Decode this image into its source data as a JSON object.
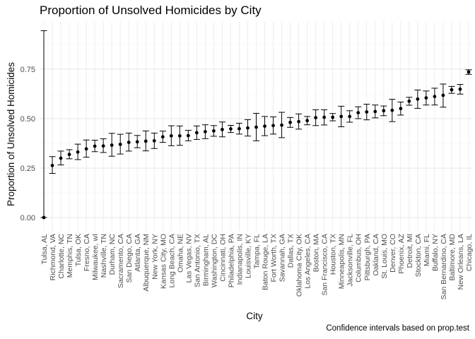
{
  "chart_data": {
    "type": "scatter",
    "title": "Proportion of Unsolved Homicides by City",
    "xlabel": "City",
    "ylabel": "Proportion of Unsolved Homicides",
    "caption": "Confidence intervals based on prop.test",
    "ylim": [
      0,
      0.95
    ],
    "y_ticks": [
      0.0,
      0.25,
      0.5,
      0.75
    ],
    "y_tick_labels": [
      "0.00",
      "0.25",
      "0.50",
      "0.75"
    ],
    "grid": true,
    "error_bars": "95% confidence interval",
    "points": [
      {
        "city": "Tulsa, AL",
        "estimate": 0.0,
        "lower": 0.0,
        "upper": 0.945
      },
      {
        "city": "Richmond, VA",
        "estimate": 0.263,
        "lower": 0.223,
        "upper": 0.308
      },
      {
        "city": "Charlotte, NC",
        "estimate": 0.3,
        "lower": 0.266,
        "upper": 0.336
      },
      {
        "city": "Memphis, TN",
        "estimate": 0.319,
        "lower": 0.297,
        "upper": 0.343
      },
      {
        "city": "Tulsa, OK",
        "estimate": 0.331,
        "lower": 0.293,
        "upper": 0.371
      },
      {
        "city": "Fresno, CA",
        "estimate": 0.347,
        "lower": 0.305,
        "upper": 0.392
      },
      {
        "city": "Milwaukee, wI",
        "estimate": 0.361,
        "lower": 0.333,
        "upper": 0.391
      },
      {
        "city": "Nashville, TN",
        "estimate": 0.362,
        "lower": 0.329,
        "upper": 0.398
      },
      {
        "city": "Durham, NC",
        "estimate": 0.366,
        "lower": 0.31,
        "upper": 0.426
      },
      {
        "city": "Sacramento, CA",
        "estimate": 0.37,
        "lower": 0.321,
        "upper": 0.421
      },
      {
        "city": "San Diego, CA",
        "estimate": 0.38,
        "lower": 0.336,
        "upper": 0.427
      },
      {
        "city": "Atlanta, GA",
        "estimate": 0.383,
        "lower": 0.353,
        "upper": 0.415
      },
      {
        "city": "Albuquerque, NM",
        "estimate": 0.386,
        "lower": 0.337,
        "upper": 0.438
      },
      {
        "city": "New York, NY",
        "estimate": 0.388,
        "lower": 0.349,
        "upper": 0.427
      },
      {
        "city": "Kansas City, MO",
        "estimate": 0.408,
        "lower": 0.38,
        "upper": 0.437
      },
      {
        "city": "Long Beach, CA",
        "estimate": 0.413,
        "lower": 0.363,
        "upper": 0.464
      },
      {
        "city": "Omaha, NE",
        "estimate": 0.413,
        "lower": 0.365,
        "upper": 0.463
      },
      {
        "city": "Las Vegas, NV",
        "estimate": 0.414,
        "lower": 0.388,
        "upper": 0.441
      },
      {
        "city": "San Antonio, TX",
        "estimate": 0.429,
        "lower": 0.395,
        "upper": 0.463
      },
      {
        "city": "Birmingham, AL",
        "estimate": 0.434,
        "lower": 0.399,
        "upper": 0.469
      },
      {
        "city": "Washington, DC",
        "estimate": 0.438,
        "lower": 0.411,
        "upper": 0.465
      },
      {
        "city": "Cincinnati, OH",
        "estimate": 0.445,
        "lower": 0.408,
        "upper": 0.483
      },
      {
        "city": "Philadelphia, PA",
        "estimate": 0.448,
        "lower": 0.43,
        "upper": 0.466
      },
      {
        "city": "Indianapolis, IN",
        "estimate": 0.449,
        "lower": 0.422,
        "upper": 0.477
      },
      {
        "city": "Louisville, KY",
        "estimate": 0.453,
        "lower": 0.412,
        "upper": 0.495
      },
      {
        "city": "Tampa, FL",
        "estimate": 0.457,
        "lower": 0.388,
        "upper": 0.527
      },
      {
        "city": "Baton Rouge, LA",
        "estimate": 0.462,
        "lower": 0.414,
        "upper": 0.511
      },
      {
        "city": "Fort Worth, TX",
        "estimate": 0.465,
        "lower": 0.422,
        "upper": 0.509
      },
      {
        "city": "Savannah, GA",
        "estimate": 0.467,
        "lower": 0.404,
        "upper": 0.532
      },
      {
        "city": "Dallas, TX",
        "estimate": 0.481,
        "lower": 0.456,
        "upper": 0.506
      },
      {
        "city": "Oklahoma City, OK",
        "estimate": 0.485,
        "lower": 0.447,
        "upper": 0.524
      },
      {
        "city": "Los Angeles, CA",
        "estimate": 0.49,
        "lower": 0.469,
        "upper": 0.511
      },
      {
        "city": "Boston, MA",
        "estimate": 0.505,
        "lower": 0.465,
        "upper": 0.545
      },
      {
        "city": "San Francisco, CA",
        "estimate": 0.507,
        "lower": 0.468,
        "upper": 0.545
      },
      {
        "city": "Houston, TX",
        "estimate": 0.507,
        "lower": 0.489,
        "upper": 0.526
      },
      {
        "city": "Minneapolis, MN",
        "estimate": 0.511,
        "lower": 0.459,
        "upper": 0.563
      },
      {
        "city": "Jacksonville, FL",
        "estimate": 0.511,
        "lower": 0.482,
        "upper": 0.54
      },
      {
        "city": "Columbus, OH",
        "estimate": 0.53,
        "lower": 0.5,
        "upper": 0.56
      },
      {
        "city": "Pittsburgh, PA",
        "estimate": 0.534,
        "lower": 0.494,
        "upper": 0.573
      },
      {
        "city": "Oakland, CA",
        "estimate": 0.536,
        "lower": 0.504,
        "upper": 0.569
      },
      {
        "city": "St. Louis, MO",
        "estimate": 0.54,
        "lower": 0.515,
        "upper": 0.564
      },
      {
        "city": "Denver, CO",
        "estimate": 0.542,
        "lower": 0.485,
        "upper": 0.598
      },
      {
        "city": "Phoenix, AZ",
        "estimate": 0.551,
        "lower": 0.518,
        "upper": 0.584
      },
      {
        "city": "Detroit, MI",
        "estimate": 0.588,
        "lower": 0.568,
        "upper": 0.608
      },
      {
        "city": "Stockton, CA",
        "estimate": 0.599,
        "lower": 0.552,
        "upper": 0.645
      },
      {
        "city": "Miami, FL",
        "estimate": 0.605,
        "lower": 0.569,
        "upper": 0.64
      },
      {
        "city": "Buffalo, NY",
        "estimate": 0.612,
        "lower": 0.569,
        "upper": 0.654
      },
      {
        "city": "San Bernardino, CA",
        "estimate": 0.618,
        "lower": 0.558,
        "upper": 0.675
      },
      {
        "city": "Baltimore, MD",
        "estimate": 0.646,
        "lower": 0.628,
        "upper": 0.663
      },
      {
        "city": "New Orleans, LA",
        "estimate": 0.649,
        "lower": 0.624,
        "upper": 0.673
      },
      {
        "city": "Chicago, IL",
        "estimate": 0.736,
        "lower": 0.724,
        "upper": 0.747
      }
    ]
  }
}
